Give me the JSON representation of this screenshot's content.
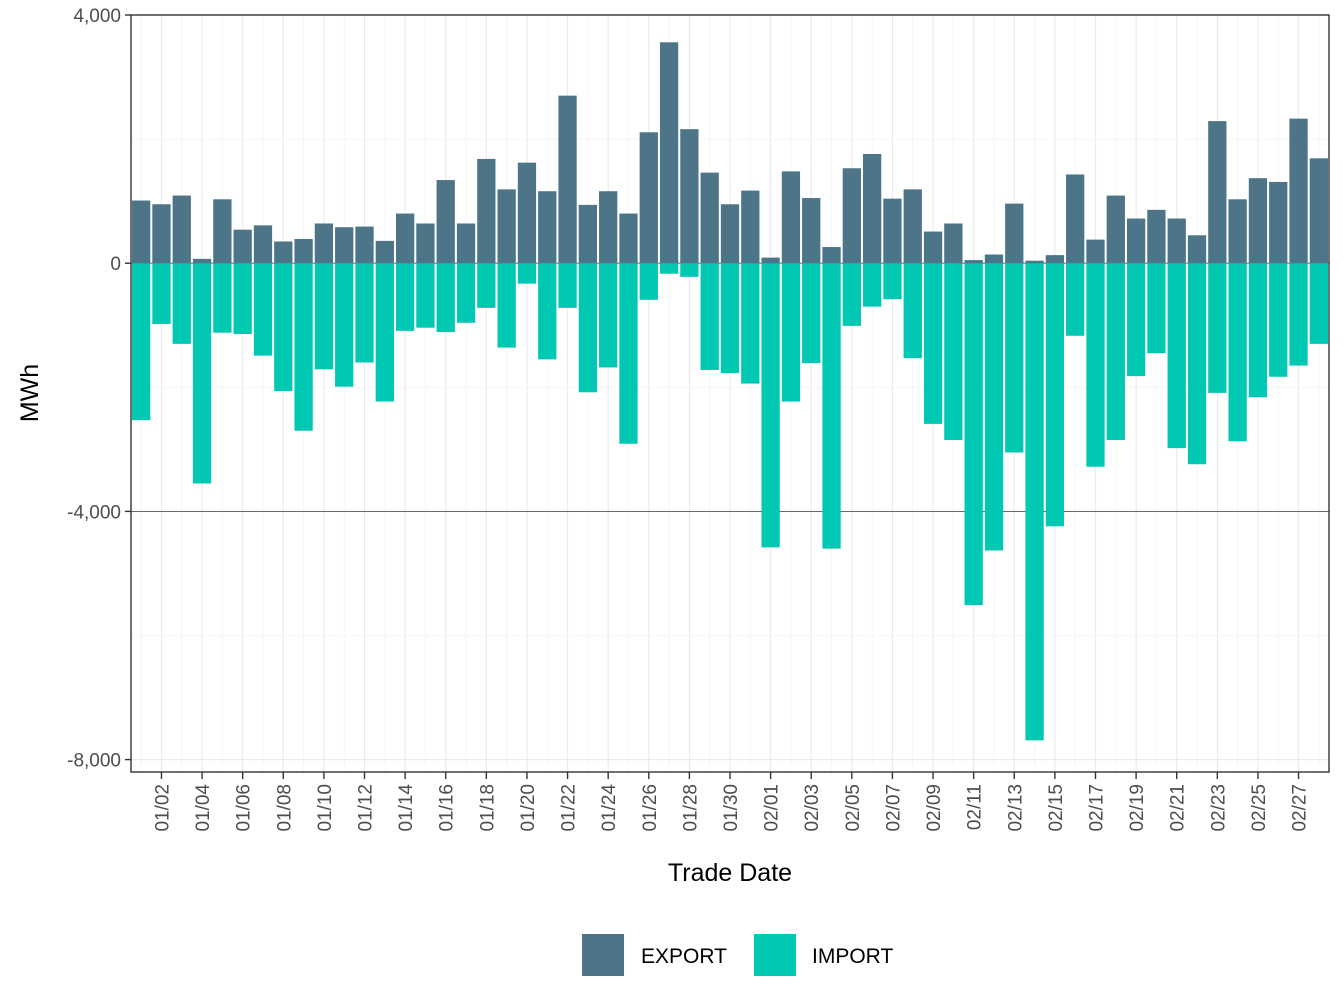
{
  "chart_data": {
    "type": "bar",
    "title": "",
    "xlabel": "Trade Date",
    "ylabel": "MWh",
    "ylim": [
      -8200,
      4000
    ],
    "yticks": [
      4000,
      0,
      -4000,
      -8000
    ],
    "ytick_labels": [
      "4,000",
      "0",
      "-4,000",
      "-8,000"
    ],
    "categories": [
      "01/01",
      "01/02",
      "01/03",
      "01/04",
      "01/05",
      "01/06",
      "01/07",
      "01/08",
      "01/09",
      "01/10",
      "01/11",
      "01/12",
      "01/13",
      "01/14",
      "01/15",
      "01/16",
      "01/17",
      "01/18",
      "01/19",
      "01/20",
      "01/21",
      "01/22",
      "01/23",
      "01/24",
      "01/25",
      "01/26",
      "01/27",
      "01/28",
      "01/29",
      "01/30",
      "01/31",
      "02/01",
      "02/02",
      "02/03",
      "02/04",
      "02/05",
      "02/06",
      "02/07",
      "02/08",
      "02/09",
      "02/10",
      "02/11",
      "02/12",
      "02/13",
      "02/14",
      "02/15",
      "02/16",
      "02/17",
      "02/18",
      "02/19",
      "02/20",
      "02/21",
      "02/22",
      "02/23",
      "02/24",
      "02/25",
      "02/26",
      "02/27",
      "02/28"
    ],
    "xtick_labels": [
      "01/02",
      "01/04",
      "01/06",
      "01/08",
      "01/10",
      "01/12",
      "01/14",
      "01/16",
      "01/18",
      "01/20",
      "01/22",
      "01/24",
      "01/26",
      "01/28",
      "01/30",
      "02/01",
      "02/03",
      "02/05",
      "02/07",
      "02/09",
      "02/11",
      "02/13",
      "02/15",
      "02/17",
      "02/19",
      "02/21",
      "02/23",
      "02/25",
      "02/27"
    ],
    "series": [
      {
        "name": "EXPORT",
        "color": "#4e7487",
        "values": [
          1010,
          950,
          1090,
          70,
          1030,
          540,
          610,
          350,
          390,
          640,
          580,
          590,
          360,
          800,
          640,
          1340,
          640,
          1680,
          1190,
          1620,
          1160,
          2700,
          940,
          1160,
          800,
          2110,
          3560,
          2160,
          1460,
          950,
          1170,
          90,
          1480,
          1050,
          260,
          1530,
          1760,
          1040,
          1190,
          510,
          640,
          50,
          140,
          960,
          40,
          130,
          1430,
          380,
          1090,
          720,
          860,
          720,
          450,
          2290,
          1030,
          1370,
          1310,
          2330,
          1690
        ]
      },
      {
        "name": "IMPORT",
        "color": "#00c8b2",
        "values": [
          -2530,
          -980,
          -1300,
          -3550,
          -1120,
          -1140,
          -1490,
          -2060,
          -2700,
          -1710,
          -1990,
          -1600,
          -2230,
          -1090,
          -1040,
          -1110,
          -960,
          -720,
          -1360,
          -330,
          -1550,
          -720,
          -2080,
          -1680,
          -2910,
          -590,
          -170,
          -220,
          -1720,
          -1770,
          -1940,
          -4580,
          -2230,
          -1610,
          -4600,
          -1010,
          -700,
          -580,
          -1530,
          -2590,
          -2850,
          -5510,
          -4630,
          -3050,
          -7690,
          -4240,
          -1170,
          -3280,
          -2850,
          -1820,
          -1450,
          -2980,
          -3240,
          -2090,
          -2870,
          -2160,
          -1830,
          -1650,
          -1300
        ]
      }
    ],
    "legend": {
      "position": "bottom",
      "entries": [
        "EXPORT",
        "IMPORT"
      ]
    }
  }
}
